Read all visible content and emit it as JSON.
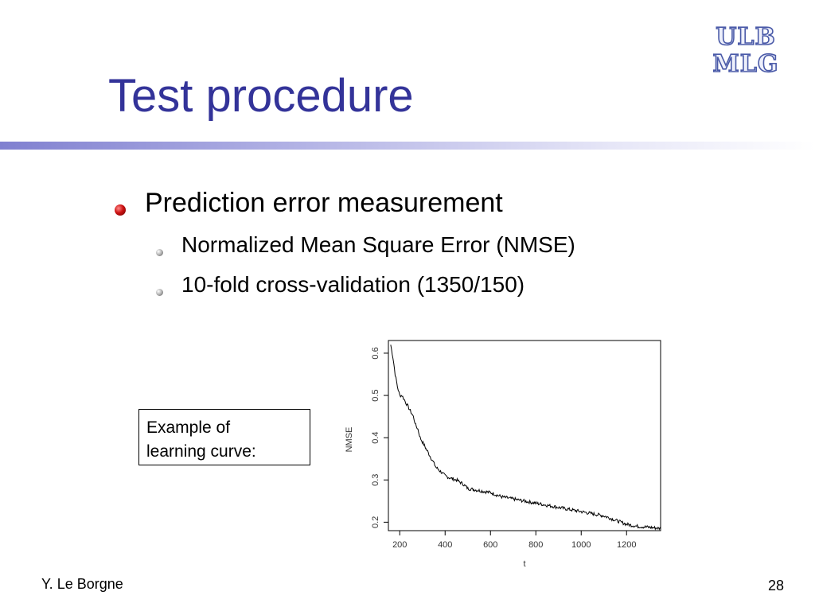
{
  "slide": {
    "title": "Test procedure",
    "logo": {
      "line1": "ULB",
      "line2": "MLG"
    },
    "bullets": {
      "main": "Prediction error measurement",
      "sub": [
        "Normalized Mean Square Error (NMSE)",
        "10-fold cross-validation (1350/150)"
      ]
    },
    "callout": {
      "line1": "Example of",
      "line2": "learning curve:"
    },
    "footer": {
      "author": "Y. Le Borgne",
      "page": "28"
    },
    "colors": {
      "title": "#333399",
      "bullet_main": "#cc1111",
      "bullet_sub": "#9a9a9a"
    }
  },
  "chart_data": {
    "type": "line",
    "title": "",
    "xlabel": "t",
    "ylabel": "NMSE",
    "xlim": [
      150,
      1350
    ],
    "ylim": [
      0.18,
      0.63
    ],
    "xticks": [
      200,
      400,
      600,
      800,
      1000,
      1200
    ],
    "yticks": [
      0.2,
      0.3,
      0.4,
      0.5,
      0.6
    ],
    "grid": false,
    "series": [
      {
        "x": [
          160,
          170,
          180,
          190,
          200,
          210,
          220,
          230,
          240,
          250,
          260,
          270,
          280,
          290,
          300,
          320,
          340,
          360,
          380,
          400,
          420,
          450,
          480,
          500,
          550,
          600,
          650,
          700,
          750,
          800,
          850,
          900,
          950,
          1000,
          1050,
          1100,
          1150,
          1200,
          1250,
          1300,
          1350
        ],
        "y": [
          0.62,
          0.59,
          0.55,
          0.52,
          0.5,
          0.5,
          0.49,
          0.48,
          0.47,
          0.46,
          0.45,
          0.43,
          0.42,
          0.4,
          0.39,
          0.37,
          0.35,
          0.33,
          0.32,
          0.31,
          0.305,
          0.3,
          0.29,
          0.28,
          0.275,
          0.27,
          0.26,
          0.255,
          0.25,
          0.245,
          0.24,
          0.235,
          0.23,
          0.225,
          0.22,
          0.215,
          0.205,
          0.195,
          0.19,
          0.188,
          0.185
        ]
      }
    ]
  }
}
